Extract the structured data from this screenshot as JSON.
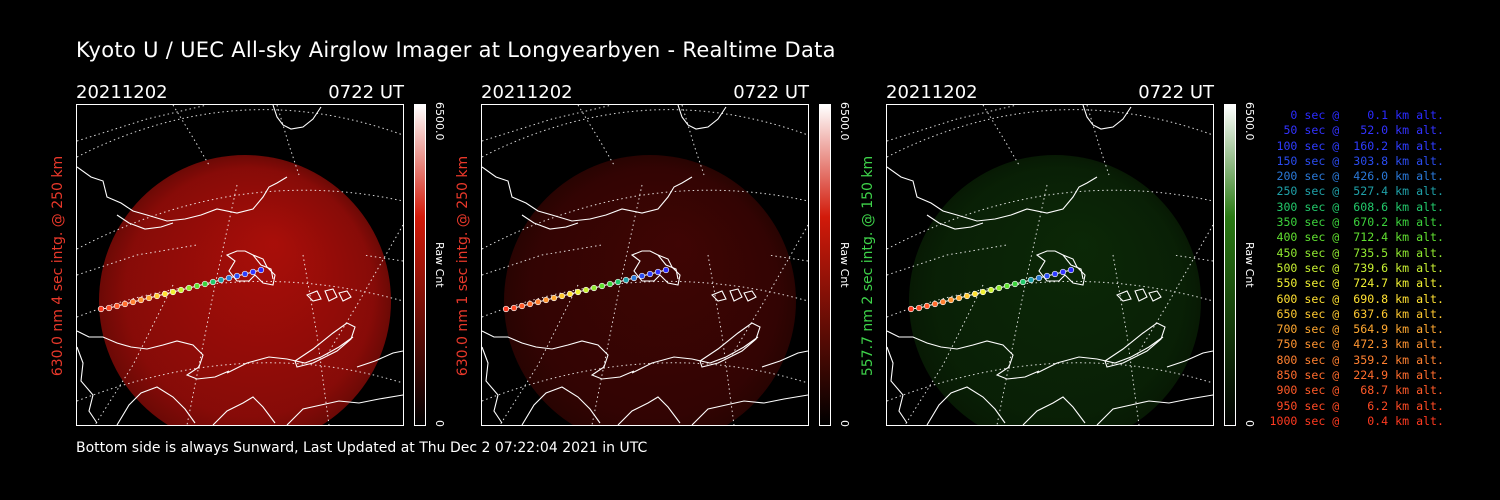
{
  "title": "Kyoto U / UEC All-sky Airglow Imager at Longyearbyen - Realtime Data",
  "footer": "Bottom side is always Sunward, Last Updated at Thu Dec  2 07:22:04 2021 in UTC",
  "panels": [
    {
      "date": "20211202",
      "time": "0722 UT",
      "ylabel": "630.0 nm 4 sec intg. @ 250 km",
      "ylabel_color": "#e8382a",
      "cbar_max": "6500.0",
      "cbar_unit": "Raw Cnt",
      "cbar_min": "0",
      "cbar_color": "#d21a0a",
      "glow_color": "#b40f0a",
      "glow_level": 0.75
    },
    {
      "date": "20211202",
      "time": "0722 UT",
      "ylabel": "630.0 nm 1 sec intg. @ 250 km",
      "ylabel_color": "#e8382a",
      "cbar_max": "6500.0",
      "cbar_unit": "Raw Cnt",
      "cbar_min": "0",
      "cbar_color": "#d21a0a",
      "glow_color": "#b40f0a",
      "glow_level": 0.28
    },
    {
      "date": "20211202",
      "time": "0722 UT",
      "ylabel": "557.7 nm 2 sec intg. @ 150 km",
      "ylabel_color": "#3ed24a",
      "cbar_max": "6500.0",
      "cbar_unit": "Raw Cnt",
      "cbar_min": "0",
      "cbar_color": "#2a7a14",
      "glow_color": "#1e6a12",
      "glow_level": 0.3
    }
  ],
  "legend": [
    {
      "text": "   0 sec @    0.1 km alt.",
      "color": "#2a2aff"
    },
    {
      "text": "  50 sec @   52.0 km alt.",
      "color": "#3232ff"
    },
    {
      "text": " 100 sec @  160.2 km alt.",
      "color": "#2e3cff"
    },
    {
      "text": " 150 sec @  303.8 km alt.",
      "color": "#2a4cf0"
    },
    {
      "text": " 200 sec @  426.0 km alt.",
      "color": "#2a78d8"
    },
    {
      "text": " 250 sec @  527.4 km alt.",
      "color": "#1fa0a8"
    },
    {
      "text": " 300 sec @  608.6 km alt.",
      "color": "#22c86a"
    },
    {
      "text": " 350 sec @  670.2 km alt.",
      "color": "#3cd23c"
    },
    {
      "text": " 400 sec @  712.4 km alt.",
      "color": "#60e030"
    },
    {
      "text": " 450 sec @  735.5 km alt.",
      "color": "#90e830"
    },
    {
      "text": " 500 sec @  739.6 km alt.",
      "color": "#c8f032"
    },
    {
      "text": " 550 sec @  724.7 km alt.",
      "color": "#f0f032"
    },
    {
      "text": " 600 sec @  690.8 km alt.",
      "color": "#ffe032"
    },
    {
      "text": " 650 sec @  637.6 km alt.",
      "color": "#ffc830"
    },
    {
      "text": " 700 sec @  564.9 km alt.",
      "color": "#ffa830"
    },
    {
      "text": " 750 sec @  472.3 km alt.",
      "color": "#ff9430"
    },
    {
      "text": " 800 sec @  359.2 km alt.",
      "color": "#ff8030"
    },
    {
      "text": " 850 sec @  224.9 km alt.",
      "color": "#ff6c2c"
    },
    {
      "text": " 900 sec @   68.7 km alt.",
      "color": "#ff5a28"
    },
    {
      "text": " 950 sec @    6.2 km alt.",
      "color": "#ff4a24"
    },
    {
      "text": "1000 sec @    0.4 km alt.",
      "color": "#ff3a20"
    }
  ]
}
